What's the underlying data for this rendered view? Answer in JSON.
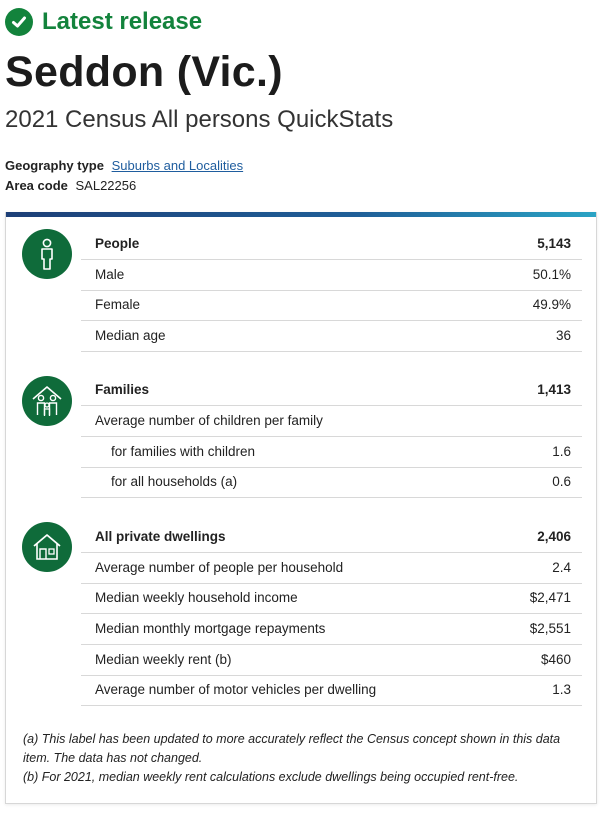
{
  "badge": {
    "text": "Latest release"
  },
  "title": "Seddon (Vic.)",
  "subtitle": "2021 Census All persons QuickStats",
  "meta": {
    "geography_label": "Geography type",
    "geography_value": "Suburbs and Localities",
    "area_label": "Area code",
    "area_value": "SAL22256"
  },
  "sections": {
    "people": {
      "icon": "person-icon",
      "rows": [
        {
          "label": "People",
          "value": "5,143"
        },
        {
          "label": "Male",
          "value": "50.1%"
        },
        {
          "label": "Female",
          "value": "49.9%"
        },
        {
          "label": "Median age",
          "value": "36"
        }
      ]
    },
    "families": {
      "icon": "family-icon",
      "rows": [
        {
          "label": "Families",
          "value": "1,413"
        },
        {
          "label": "Average number of children per family",
          "value": ""
        },
        {
          "label": "for families with children",
          "value": "1.6"
        },
        {
          "label": "for all households (a)",
          "value": "0.6"
        }
      ]
    },
    "dwellings": {
      "icon": "house-icon",
      "rows": [
        {
          "label": "All private dwellings",
          "value": "2,406"
        },
        {
          "label": "Average number of people per household",
          "value": "2.4"
        },
        {
          "label": "Median weekly household income",
          "value": "$2,471"
        },
        {
          "label": "Median monthly mortgage repayments",
          "value": "$2,551"
        },
        {
          "label": "Median weekly rent (b)",
          "value": "$460"
        },
        {
          "label": "Average number of motor vehicles per dwelling",
          "value": "1.3"
        }
      ]
    }
  },
  "notes": {
    "a": "(a) This label has been updated to more accurately reflect the Census concept shown in this data item. The data has not changed.",
    "b": "(b) For 2021, median weekly rent calculations exclude dwellings being occupied rent-free."
  },
  "colors": {
    "accent_green": "#13833c",
    "icon_green": "#0f6b3a",
    "link_blue": "#1f5d9e"
  }
}
